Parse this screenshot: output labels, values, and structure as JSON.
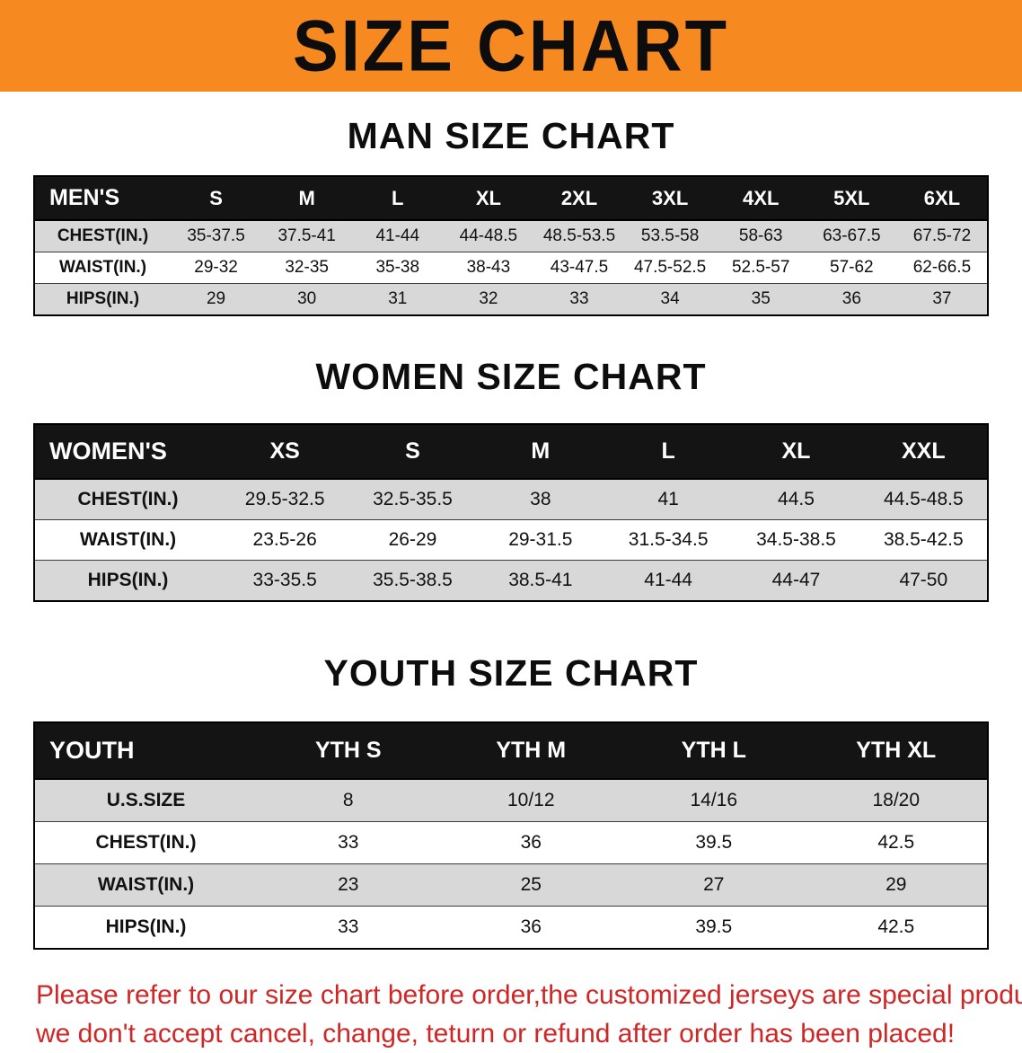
{
  "banner": {
    "title": "SIZE CHART"
  },
  "colors": {
    "banner_bg": "#f6891f",
    "table_header_bg": "#141414",
    "row_alt_gray": "#d8d8d8",
    "disclaimer_red": "#cf2626"
  },
  "sections": [
    {
      "heading": "MAN SIZE CHART",
      "table": {
        "header": [
          "MEN'S",
          "S",
          "M",
          "L",
          "XL",
          "2XL",
          "3XL",
          "4XL",
          "5XL",
          "6XL"
        ],
        "rows": [
          [
            "CHEST(IN.)",
            "35-37.5",
            "37.5-41",
            "41-44",
            "44-48.5",
            "48.5-53.5",
            "53.5-58",
            "58-63",
            "63-67.5",
            "67.5-72"
          ],
          [
            "WAIST(IN.)",
            "29-32",
            "32-35",
            "35-38",
            "38-43",
            "43-47.5",
            "47.5-52.5",
            "52.5-57",
            "57-62",
            "62-66.5"
          ],
          [
            "HIPS(IN.)",
            "29",
            "30",
            "31",
            "32",
            "33",
            "34",
            "35",
            "36",
            "37"
          ]
        ]
      }
    },
    {
      "heading": "WOMEN SIZE CHART",
      "table": {
        "header": [
          "WOMEN'S",
          "XS",
          "S",
          "M",
          "L",
          "XL",
          "XXL"
        ],
        "rows": [
          [
            "CHEST(IN.)",
            "29.5-32.5",
            "32.5-35.5",
            "38",
            "41",
            "44.5",
            "44.5-48.5"
          ],
          [
            "WAIST(IN.)",
            "23.5-26",
            "26-29",
            "29-31.5",
            "31.5-34.5",
            "34.5-38.5",
            "38.5-42.5"
          ],
          [
            "HIPS(IN.)",
            "33-35.5",
            "35.5-38.5",
            "38.5-41",
            "41-44",
            "44-47",
            "47-50"
          ]
        ]
      }
    },
    {
      "heading": "YOUTH SIZE CHART",
      "table": {
        "header": [
          "YOUTH",
          "YTH S",
          "YTH M",
          "YTH L",
          "YTH XL"
        ],
        "rows": [
          [
            "U.S.SIZE",
            "8",
            "10/12",
            "14/16",
            "18/20"
          ],
          [
            "CHEST(IN.)",
            "33",
            "36",
            "39.5",
            "42.5"
          ],
          [
            "WAIST(IN.)",
            "23",
            "25",
            "27",
            "29"
          ],
          [
            "HIPS(IN.)",
            "33",
            "36",
            "39.5",
            "42.5"
          ]
        ]
      }
    }
  ],
  "disclaimer": {
    "line1": "Please refer to our size chart before order,the customized jerseys are special products,",
    "line2": "we don't accept cancel, change, teturn or refund after order has been placed!"
  }
}
